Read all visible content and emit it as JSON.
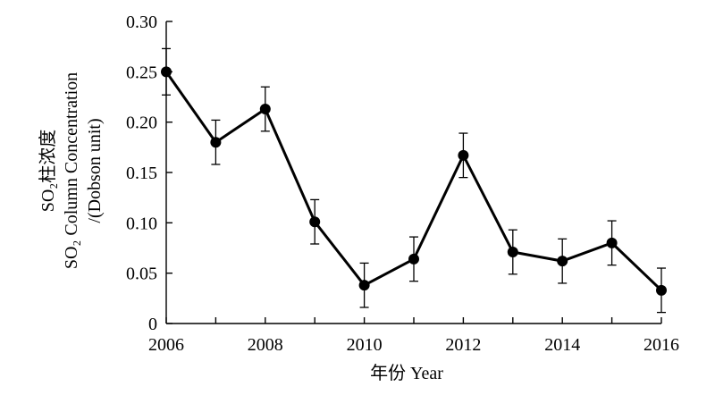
{
  "chart_data": {
    "type": "line",
    "title": "",
    "xlabel": "年份 Year",
    "ylabel_lines": [
      "SO₂柱浓度",
      "SO₂ Column Concentration",
      "/(Dobson unit)"
    ],
    "x": [
      2006,
      2007,
      2008,
      2009,
      2010,
      2011,
      2012,
      2013,
      2014,
      2015,
      2016
    ],
    "series": [
      {
        "values": [
          0.25,
          0.18,
          0.213,
          0.101,
          0.038,
          0.064,
          0.167,
          0.071,
          0.062,
          0.08,
          0.033
        ],
        "error": [
          0.023,
          0.022,
          0.022,
          0.022,
          0.022,
          0.022,
          0.022,
          0.022,
          0.022,
          0.022,
          0.022
        ],
        "color": "#000000",
        "marker": "circle"
      }
    ],
    "xlim": [
      2006,
      2016
    ],
    "ylim": [
      0,
      0.3
    ],
    "x_ticks": [
      2006,
      2008,
      2010,
      2012,
      2014,
      2016
    ],
    "y_ticks": [
      0,
      0.05,
      0.1,
      0.15,
      0.2,
      0.25,
      0.3
    ],
    "x_tick_labels": [
      "2006",
      "2008",
      "2010",
      "2012",
      "2014",
      "2016"
    ],
    "y_tick_labels": [
      "0",
      "0.05",
      "0.10",
      "0.15",
      "0.20",
      "0.25",
      "0.30"
    ],
    "grid": false,
    "legend": "none"
  }
}
